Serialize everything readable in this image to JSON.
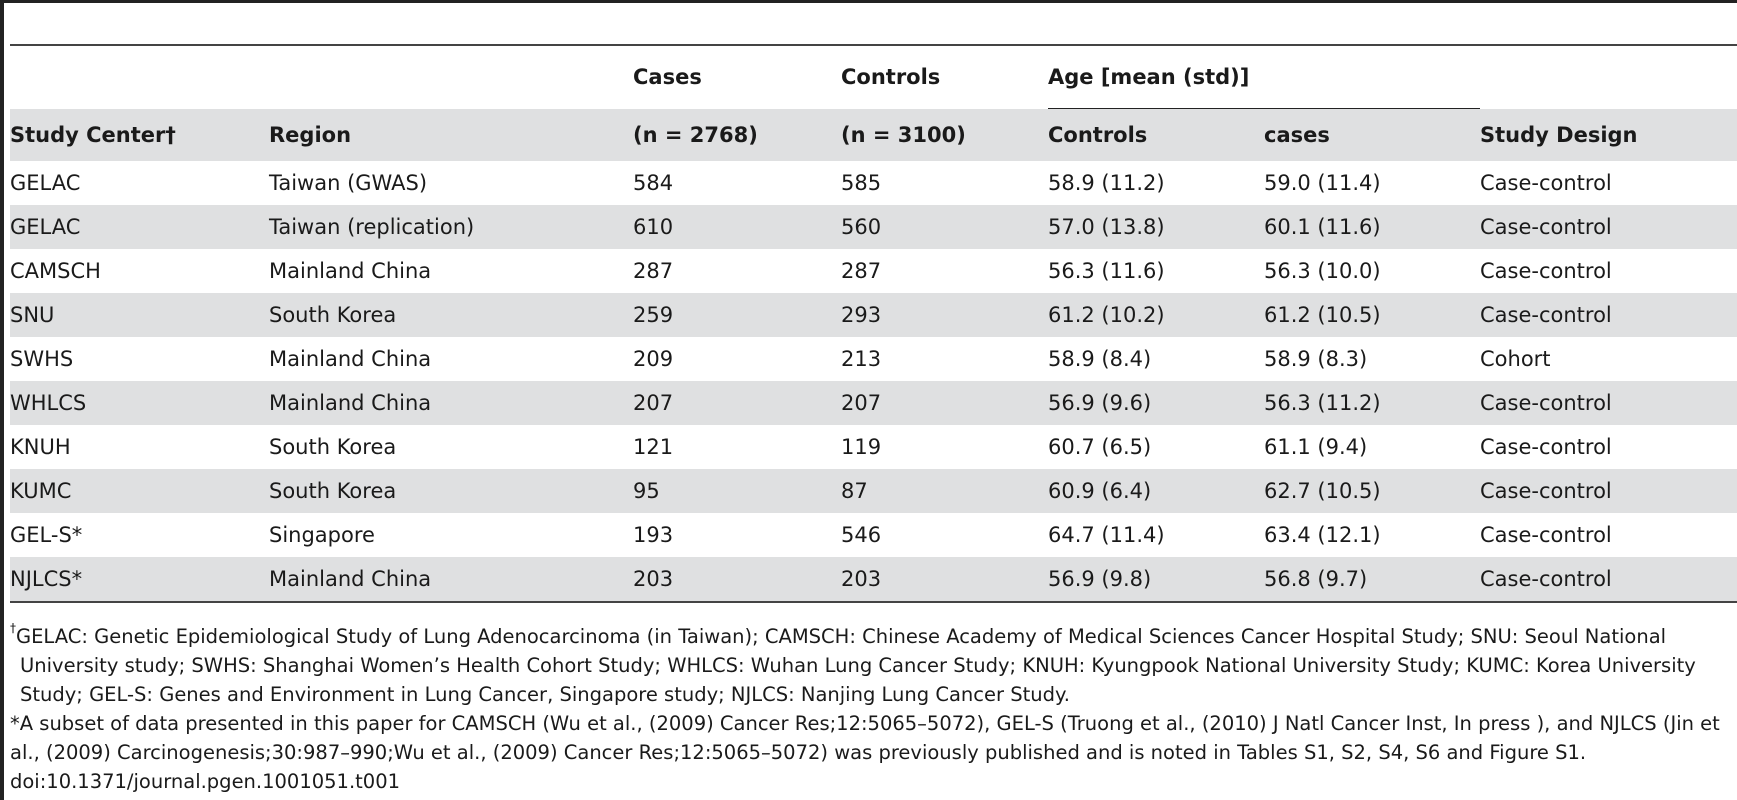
{
  "header": {
    "cases_label": "Cases",
    "controls_label": "Controls",
    "age_label": "Age [mean (std)]",
    "study_center": "Study Center†",
    "region": "Region",
    "cases_n": "(n = 2768)",
    "controls_n": "(n = 3100)",
    "age_controls": "Controls",
    "age_cases": "cases",
    "study_design": "Study Design"
  },
  "rows": [
    {
      "center": "GELAC",
      "region": "Taiwan (GWAS)",
      "cases": "584",
      "controls": "585",
      "age_controls": "58.9 (11.2)",
      "age_cases": "59.0 (11.4)",
      "design": "Case-control"
    },
    {
      "center": "GELAC",
      "region": "Taiwan (replication)",
      "cases": "610",
      "controls": "560",
      "age_controls": "57.0 (13.8)",
      "age_cases": "60.1 (11.6)",
      "design": "Case-control"
    },
    {
      "center": "CAMSCH",
      "region": "Mainland China",
      "cases": "287",
      "controls": "287",
      "age_controls": "56.3 (11.6)",
      "age_cases": "56.3 (10.0)",
      "design": "Case-control"
    },
    {
      "center": "SNU",
      "region": "South Korea",
      "cases": "259",
      "controls": "293",
      "age_controls": "61.2 (10.2)",
      "age_cases": "61.2 (10.5)",
      "design": "Case-control"
    },
    {
      "center": "SWHS",
      "region": "Mainland China",
      "cases": "209",
      "controls": "213",
      "age_controls": "58.9 (8.4)",
      "age_cases": "58.9 (8.3)",
      "design": "Cohort"
    },
    {
      "center": "WHLCS",
      "region": "Mainland China",
      "cases": "207",
      "controls": "207",
      "age_controls": "56.9 (9.6)",
      "age_cases": "56.3 (11.2)",
      "design": "Case-control"
    },
    {
      "center": "KNUH",
      "region": "South Korea",
      "cases": "121",
      "controls": "119",
      "age_controls": "60.7 (6.5)",
      "age_cases": "61.1 (9.4)",
      "design": "Case-control"
    },
    {
      "center": "KUMC",
      "region": "South Korea",
      "cases": "95",
      "controls": "87",
      "age_controls": "60.9 (6.4)",
      "age_cases": "62.7 (10.5)",
      "design": "Case-control"
    },
    {
      "center": "GEL-S*",
      "region": "Singapore",
      "cases": "193",
      "controls": "546",
      "age_controls": "64.7 (11.4)",
      "age_cases": "63.4 (12.1)",
      "design": "Case-control"
    },
    {
      "center": "NJLCS*",
      "region": "Mainland China",
      "cases": "203",
      "controls": "203",
      "age_controls": "56.9 (9.8)",
      "age_cases": "56.8 (9.7)",
      "design": "Case-control"
    }
  ],
  "footnotes": {
    "dagger_mark": "†",
    "dagger_text": "GELAC: Genetic Epidemiological Study of Lung Adenocarcinoma (in Taiwan); CAMSCH: Chinese Academy of Medical Sciences Cancer Hospital Study; SNU: Seoul National University study; SWHS: Shanghai Women’s Health Cohort Study; WHLCS: Wuhan Lung Cancer Study; KNUH: Kyungpook National University Study; KUMC: Korea University Study; GEL-S: Genes and Environment in Lung Cancer, Singapore study; NJLCS: Nanjing Lung Cancer Study.",
    "asterisk_text": "*A subset of data presented in this paper for CAMSCH (Wu et al., (2009) Cancer Res;12:5065–5072), GEL-S (Truong et al., (2010) J Natl Cancer Inst, In press ), and NJLCS (Jin et al., (2009) Carcinogenesis;30:987–990;Wu et al., (2009) Cancer Res;12:5065–5072) was previously published and is noted in Tables S1, S2, S4, S6 and Figure S1.",
    "doi": "doi:10.1371/journal.pgen.1001051.t001"
  }
}
